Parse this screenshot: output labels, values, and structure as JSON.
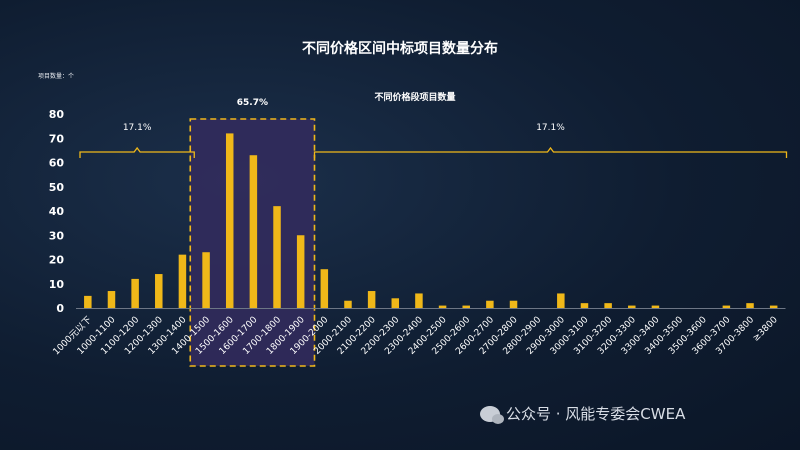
{
  "chart_data": {
    "type": "bar",
    "title": "不同价格区间中标项目数量分布",
    "subtitle": "不同价格段项目数量",
    "ylabel": "项目数量：个",
    "ylim": [
      0,
      80
    ],
    "yticks": [
      0,
      10,
      20,
      30,
      40,
      50,
      60,
      70,
      80
    ],
    "bar_color": "#f0b819",
    "categories": [
      "1000元以下",
      "1000-1100",
      "1100-1200",
      "1200-1300",
      "1300-1400",
      "1400-1500",
      "1500-1600",
      "1600-1700",
      "1700-1800",
      "1800-1900",
      "1900-2000",
      "2000-2100",
      "2100-2200",
      "2200-2300",
      "2300-2400",
      "2400-2500",
      "2500-2600",
      "2600-2700",
      "2700-2800",
      "2800-2900",
      "2900-3000",
      "3000-3100",
      "3100-3200",
      "3200-3300",
      "3300-3400",
      "3400-3500",
      "3500-3600",
      "3600-3700",
      "3700-3800",
      "≥3800"
    ],
    "values": [
      5,
      7,
      12,
      14,
      22,
      23,
      72,
      63,
      42,
      30,
      16,
      3,
      7,
      4,
      6,
      1,
      1,
      3,
      3,
      0,
      6,
      2,
      2,
      1,
      1,
      0,
      0,
      1,
      2,
      1
    ],
    "annotations": [
      {
        "text": "17.1%",
        "from": 0,
        "to": 4,
        "style": "brace"
      },
      {
        "text": "65.7%",
        "from": 5,
        "to": 9,
        "style": "dashed-box"
      },
      {
        "text": "17.1%",
        "from": 10,
        "to": 29,
        "style": "brace"
      }
    ]
  },
  "watermark": "公众号 · 风能专委会CWEA"
}
